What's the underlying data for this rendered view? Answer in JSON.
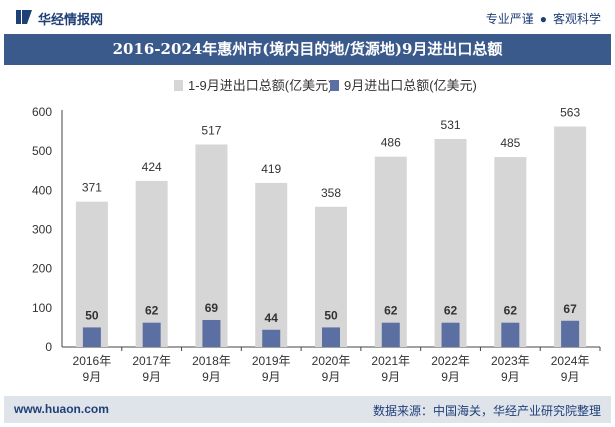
{
  "header": {
    "brand": "华经情报网",
    "tagline_left": "专业严谨",
    "tagline_right": "客观科学"
  },
  "title": "2016-2024年惠州市(境内目的地/货源地)9月进出口总额",
  "footer": {
    "url": "www.huaon.com",
    "source": "数据来源：中国海关，华经产业研究院整理"
  },
  "colors": {
    "title_bg": "#3b5a8c",
    "series1": "#d6d6d6",
    "series2": "#5b6fa3"
  },
  "chart_data": {
    "type": "bar",
    "categories": [
      "2016年\n9月",
      "2017年\n9月",
      "2018年\n9月",
      "2019年\n9月",
      "2020年\n9月",
      "2021年\n9月",
      "2022年\n9月",
      "2023年\n9月",
      "2024年\n9月"
    ],
    "series": [
      {
        "name": "1-9月进出口总额(亿美元)",
        "values": [
          371,
          424,
          517,
          419,
          358,
          486,
          531,
          485,
          563
        ]
      },
      {
        "name": "9月进出口总额(亿美元)",
        "values": [
          50,
          62,
          69,
          44,
          50,
          62,
          62,
          62,
          67
        ]
      }
    ],
    "ylim": [
      0,
      600
    ],
    "yticks": [
      0,
      100,
      200,
      300,
      400,
      500,
      600
    ],
    "legend": "top-center",
    "grid": false
  }
}
